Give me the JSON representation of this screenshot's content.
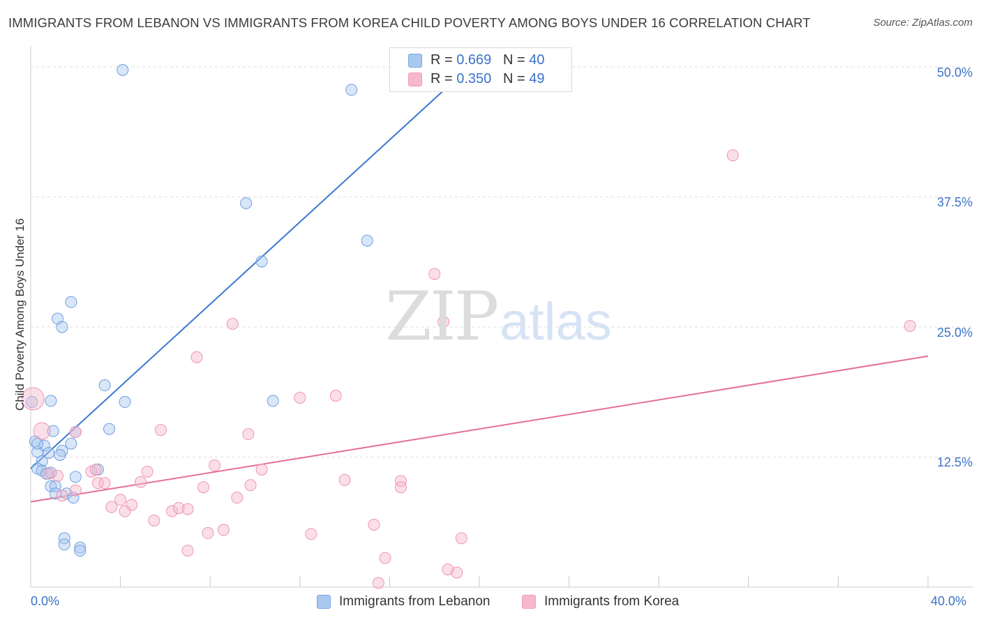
{
  "title": "IMMIGRANTS FROM LEBANON VS IMMIGRANTS FROM KOREA CHILD POVERTY AMONG BOYS UNDER 16 CORRELATION CHART",
  "source": "Source: ZipAtlas.com",
  "watermark": {
    "zip": "ZIP",
    "atlas": "atlas"
  },
  "legend": {
    "lebanon": {
      "r_label": "R =",
      "r_value": "0.669",
      "n_label": "N =",
      "n_value": "40",
      "color": "#a8c8f0"
    },
    "korea": {
      "r_label": "R =",
      "r_value": "0.350",
      "n_label": "N =",
      "n_value": "49",
      "color": "#f7b8cb"
    }
  },
  "bottom_legend": {
    "lebanon": "Immigrants from Lebanon",
    "korea": "Immigrants from Korea"
  },
  "colors": {
    "lebanon_line": "#3a78d2",
    "korea_line": "#e46e98",
    "tick_text": "#3a72c8"
  },
  "chart_data": {
    "type": "scatter",
    "ylabel": "Child Poverty Among Boys Under 16",
    "x_tick_labels": [
      "0.0%",
      "40.0%"
    ],
    "y_tick_labels": [
      "12.5%",
      "25.0%",
      "37.5%",
      "50.0%"
    ],
    "y_ticks": [
      12.5,
      25.0,
      37.5,
      50.0
    ],
    "xlim": [
      0,
      40
    ],
    "ylim": [
      0,
      51.2
    ],
    "grid": true,
    "legend_placement": "top-center",
    "series": [
      {
        "name": "Immigrants from Lebanon",
        "color": "#a8c8f0",
        "trend": {
          "x": [
            0.0,
            19.3
          ],
          "y": [
            11.4,
            49.5
          ]
        },
        "points": [
          {
            "x": 4.1,
            "y": 49.7,
            "s": 1
          },
          {
            "x": 14.3,
            "y": 47.8,
            "s": 1
          },
          {
            "x": 9.6,
            "y": 36.9,
            "s": 1
          },
          {
            "x": 15.0,
            "y": 33.3,
            "s": 1
          },
          {
            "x": 10.3,
            "y": 31.3,
            "s": 1
          },
          {
            "x": 1.8,
            "y": 27.4,
            "s": 1
          },
          {
            "x": 1.2,
            "y": 25.8,
            "s": 1
          },
          {
            "x": 1.4,
            "y": 25.0,
            "s": 1
          },
          {
            "x": 3.3,
            "y": 19.4,
            "s": 1
          },
          {
            "x": 4.2,
            "y": 17.8,
            "s": 1
          },
          {
            "x": 10.8,
            "y": 17.9,
            "s": 1
          },
          {
            "x": 0.9,
            "y": 17.9,
            "s": 1
          },
          {
            "x": 0.05,
            "y": 17.8,
            "s": 1
          },
          {
            "x": 3.5,
            "y": 15.2,
            "s": 1
          },
          {
            "x": 1.0,
            "y": 15.0,
            "s": 1
          },
          {
            "x": 2.0,
            "y": 14.9,
            "s": 1
          },
          {
            "x": 0.2,
            "y": 14.0,
            "s": 1
          },
          {
            "x": 0.6,
            "y": 13.6,
            "s": 1
          },
          {
            "x": 1.8,
            "y": 13.8,
            "s": 1
          },
          {
            "x": 0.3,
            "y": 13.0,
            "s": 1
          },
          {
            "x": 0.8,
            "y": 12.9,
            "s": 1
          },
          {
            "x": 1.4,
            "y": 13.1,
            "s": 1
          },
          {
            "x": 1.3,
            "y": 12.7,
            "s": 1
          },
          {
            "x": 0.5,
            "y": 12.1,
            "s": 1
          },
          {
            "x": 0.3,
            "y": 11.4,
            "s": 1
          },
          {
            "x": 0.5,
            "y": 11.2,
            "s": 1
          },
          {
            "x": 0.7,
            "y": 10.9,
            "s": 1
          },
          {
            "x": 0.9,
            "y": 11.0,
            "s": 1
          },
          {
            "x": 3.0,
            "y": 11.3,
            "s": 1
          },
          {
            "x": 2.0,
            "y": 10.6,
            "s": 1
          },
          {
            "x": 0.9,
            "y": 9.7,
            "s": 1
          },
          {
            "x": 1.1,
            "y": 9.7,
            "s": 1
          },
          {
            "x": 1.1,
            "y": 9.0,
            "s": 1
          },
          {
            "x": 1.6,
            "y": 9.0,
            "s": 1
          },
          {
            "x": 1.9,
            "y": 8.6,
            "s": 1
          },
          {
            "x": 1.5,
            "y": 4.7,
            "s": 1
          },
          {
            "x": 1.5,
            "y": 4.1,
            "s": 1
          },
          {
            "x": 2.2,
            "y": 3.8,
            "s": 1
          },
          {
            "x": 2.2,
            "y": 3.5,
            "s": 1
          },
          {
            "x": 0.3,
            "y": 13.8,
            "s": 1
          }
        ]
      },
      {
        "name": "Immigrants from Korea",
        "color": "#f7b8cb",
        "trend": {
          "x": [
            0.0,
            40.0
          ],
          "y": [
            8.2,
            22.2
          ]
        },
        "points": [
          {
            "x": 0.1,
            "y": 18.1,
            "s": 2
          },
          {
            "x": 0.5,
            "y": 15.0,
            "s": 1.5
          },
          {
            "x": 31.3,
            "y": 41.5,
            "s": 1
          },
          {
            "x": 18.0,
            "y": 30.1,
            "s": 1
          },
          {
            "x": 39.2,
            "y": 25.1,
            "s": 1
          },
          {
            "x": 9.0,
            "y": 25.3,
            "s": 1
          },
          {
            "x": 18.4,
            "y": 25.5,
            "s": 1
          },
          {
            "x": 7.4,
            "y": 22.1,
            "s": 1
          },
          {
            "x": 12.0,
            "y": 18.2,
            "s": 1
          },
          {
            "x": 13.6,
            "y": 18.4,
            "s": 1
          },
          {
            "x": 5.8,
            "y": 15.1,
            "s": 1
          },
          {
            "x": 9.7,
            "y": 14.7,
            "s": 1
          },
          {
            "x": 2.0,
            "y": 14.9,
            "s": 1
          },
          {
            "x": 8.2,
            "y": 11.7,
            "s": 1
          },
          {
            "x": 10.3,
            "y": 11.3,
            "s": 1
          },
          {
            "x": 5.2,
            "y": 11.1,
            "s": 1
          },
          {
            "x": 2.7,
            "y": 11.1,
            "s": 1
          },
          {
            "x": 2.9,
            "y": 11.3,
            "s": 1
          },
          {
            "x": 1.2,
            "y": 10.7,
            "s": 1
          },
          {
            "x": 0.8,
            "y": 10.9,
            "s": 1
          },
          {
            "x": 14.0,
            "y": 10.3,
            "s": 1
          },
          {
            "x": 16.5,
            "y": 10.2,
            "s": 1
          },
          {
            "x": 3.0,
            "y": 10.0,
            "s": 1
          },
          {
            "x": 3.3,
            "y": 10.0,
            "s": 1
          },
          {
            "x": 4.9,
            "y": 10.1,
            "s": 1
          },
          {
            "x": 7.7,
            "y": 9.6,
            "s": 1
          },
          {
            "x": 9.8,
            "y": 9.8,
            "s": 1
          },
          {
            "x": 16.5,
            "y": 9.6,
            "s": 1
          },
          {
            "x": 2.0,
            "y": 9.3,
            "s": 1
          },
          {
            "x": 1.4,
            "y": 8.8,
            "s": 1
          },
          {
            "x": 9.2,
            "y": 8.6,
            "s": 1
          },
          {
            "x": 4.0,
            "y": 8.4,
            "s": 1
          },
          {
            "x": 3.6,
            "y": 7.7,
            "s": 1
          },
          {
            "x": 4.5,
            "y": 7.9,
            "s": 1
          },
          {
            "x": 4.2,
            "y": 7.3,
            "s": 1
          },
          {
            "x": 6.3,
            "y": 7.3,
            "s": 1
          },
          {
            "x": 6.6,
            "y": 7.6,
            "s": 1
          },
          {
            "x": 7.0,
            "y": 7.5,
            "s": 1
          },
          {
            "x": 5.5,
            "y": 6.4,
            "s": 1
          },
          {
            "x": 15.3,
            "y": 6.0,
            "s": 1
          },
          {
            "x": 8.6,
            "y": 5.5,
            "s": 1
          },
          {
            "x": 7.9,
            "y": 5.2,
            "s": 1
          },
          {
            "x": 12.5,
            "y": 5.1,
            "s": 1
          },
          {
            "x": 19.2,
            "y": 4.7,
            "s": 1
          },
          {
            "x": 7.0,
            "y": 3.5,
            "s": 1
          },
          {
            "x": 15.8,
            "y": 2.8,
            "s": 1
          },
          {
            "x": 18.6,
            "y": 1.7,
            "s": 1
          },
          {
            "x": 19.0,
            "y": 1.4,
            "s": 1
          },
          {
            "x": 15.5,
            "y": 0.4,
            "s": 1
          }
        ]
      }
    ]
  }
}
